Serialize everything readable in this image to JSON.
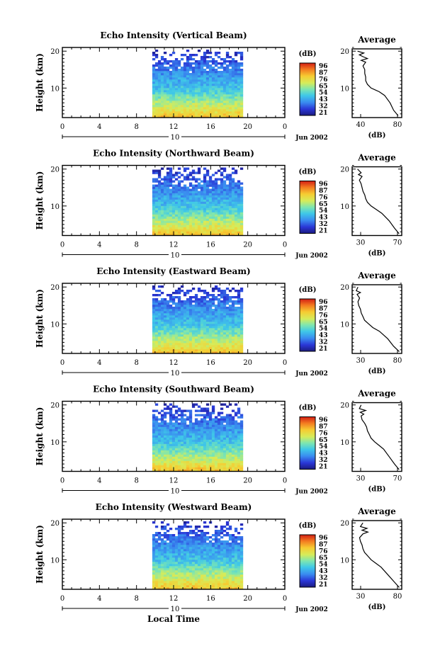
{
  "figure": {
    "xlabel": "Local Time",
    "date": "Jun 2002",
    "date_marker": "10",
    "profile_title": "Average",
    "profile_xlabel": "(dB)",
    "colorbar_label": "(dB)",
    "colorbar_ticks": [
      "96",
      "87",
      "76",
      "65",
      "54",
      "43",
      "32",
      "21"
    ]
  },
  "chart_data": [
    {
      "type": "heatmap",
      "title": "Echo Intensity (Vertical Beam)",
      "ylabel": "Height (km)",
      "xlim": [
        0,
        24
      ],
      "ylim": [
        2,
        21
      ],
      "x_ticks": [
        "0",
        "4",
        "8",
        "12",
        "16",
        "20",
        "0"
      ],
      "y_ticks": [
        "10",
        "20"
      ],
      "data_x_range": [
        9.7,
        19.3
      ],
      "value_range_db": [
        21,
        96
      ],
      "profile": {
        "title": "Average",
        "xlabel": "(dB)",
        "x_ticks": [
          "40",
          "80"
        ],
        "xlim": [
          30,
          85
        ],
        "heights": [
          2.5,
          4,
          6,
          8,
          9,
          10,
          11,
          12,
          13,
          14,
          15,
          16,
          17,
          17.5,
          18,
          18.5,
          19,
          19.5,
          20
        ],
        "values": [
          81,
          76,
          72,
          66,
          60,
          51,
          47,
          45,
          45,
          44,
          44,
          42,
          45,
          40,
          47,
          42,
          38,
          43,
          36
        ]
      }
    },
    {
      "type": "heatmap",
      "title": "Echo Intensity (Northward Beam)",
      "ylabel": "Height (km)",
      "xlim": [
        0,
        24
      ],
      "ylim": [
        2,
        21
      ],
      "x_ticks": [
        "0",
        "4",
        "8",
        "12",
        "16",
        "20",
        "0"
      ],
      "y_ticks": [
        "10",
        "20"
      ],
      "data_x_range": [
        9.7,
        19.3
      ],
      "value_range_db": [
        21,
        96
      ],
      "profile": {
        "title": "Average",
        "xlabel": "(dB)",
        "x_ticks": [
          "30",
          "70"
        ],
        "xlim": [
          25,
          80
        ],
        "heights": [
          2.5,
          4,
          6,
          8,
          9,
          10,
          11,
          12,
          13,
          14,
          15,
          16,
          17,
          18,
          18.5,
          19,
          20
        ],
        "values": [
          77,
          72,
          66,
          58,
          52,
          46,
          42,
          40,
          39,
          37,
          36,
          35,
          33,
          36,
          32,
          35,
          31
        ]
      }
    },
    {
      "type": "heatmap",
      "title": "Echo Intensity (Eastward Beam)",
      "ylabel": "Height (km)",
      "xlim": [
        0,
        24
      ],
      "ylim": [
        2,
        21
      ],
      "x_ticks": [
        "0",
        "4",
        "8",
        "12",
        "16",
        "20",
        "0"
      ],
      "y_ticks": [
        "10",
        "20"
      ],
      "data_x_range": [
        9.7,
        19.3
      ],
      "value_range_db": [
        21,
        96
      ],
      "profile": {
        "title": "Average",
        "xlabel": "(dB)",
        "x_ticks": [
          "30",
          "80"
        ],
        "xlim": [
          25,
          85
        ],
        "heights": [
          2.5,
          4,
          6,
          8,
          9,
          10,
          11,
          12,
          13,
          14,
          15,
          16,
          17,
          18,
          18.5,
          19,
          20
        ],
        "values": [
          82,
          75,
          68,
          58,
          50,
          45,
          40,
          38,
          36,
          35,
          33,
          32,
          34,
          31,
          35,
          30,
          32
        ]
      }
    },
    {
      "type": "heatmap",
      "title": "Echo Intensity (Southward Beam)",
      "ylabel": "Height (km)",
      "xlim": [
        0,
        24
      ],
      "ylim": [
        2,
        21
      ],
      "x_ticks": [
        "0",
        "4",
        "8",
        "12",
        "16",
        "20",
        "0"
      ],
      "y_ticks": [
        "10",
        "20"
      ],
      "data_x_range": [
        9.7,
        19.3
      ],
      "value_range_db": [
        21,
        96
      ],
      "profile": {
        "title": "Average",
        "xlabel": "(dB)",
        "x_ticks": [
          "30",
          "70"
        ],
        "xlim": [
          25,
          80
        ],
        "heights": [
          2.5,
          4,
          6,
          8,
          9,
          10,
          11,
          12,
          13,
          14,
          15,
          16,
          17,
          17.5,
          18,
          18.5,
          19,
          20
        ],
        "values": [
          77,
          72,
          66,
          60,
          55,
          50,
          46,
          44,
          42,
          41,
          39,
          36,
          35,
          38,
          34,
          40,
          33,
          35
        ]
      }
    },
    {
      "type": "heatmap",
      "title": "Echo Intensity (Westward Beam)",
      "ylabel": "Height (km)",
      "xlim": [
        0,
        24
      ],
      "ylim": [
        2,
        21
      ],
      "x_ticks": [
        "0",
        "4",
        "8",
        "12",
        "16",
        "20",
        "0"
      ],
      "y_ticks": [
        "10",
        "20"
      ],
      "data_x_range": [
        9.7,
        19.3
      ],
      "value_range_db": [
        21,
        96
      ],
      "profile": {
        "title": "Average",
        "xlabel": "(dB)",
        "x_ticks": [
          "30",
          "80"
        ],
        "xlim": [
          25,
          85
        ],
        "heights": [
          2.5,
          4,
          6,
          8,
          9,
          10,
          11,
          12,
          13,
          14,
          15,
          16,
          17,
          17.5,
          18,
          18.5,
          19,
          20
        ],
        "values": [
          82,
          76,
          68,
          60,
          54,
          48,
          44,
          40,
          38,
          37,
          35,
          34,
          38,
          44,
          37,
          43,
          35,
          38
        ]
      }
    }
  ]
}
